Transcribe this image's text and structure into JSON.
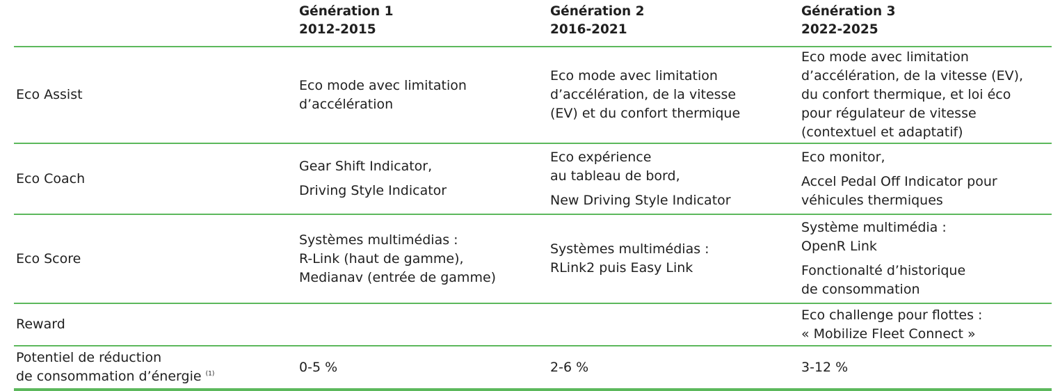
{
  "header": {
    "gen1": {
      "name": "Génération 1",
      "years": "2012-2015"
    },
    "gen2": {
      "name": "Génération 2",
      "years": "2016-2021"
    },
    "gen3": {
      "name": "Génération 3",
      "years": "2022-2025"
    }
  },
  "rows": {
    "eco_assist": {
      "label": "Eco Assist",
      "gen1": [
        "Eco mode avec limitation",
        "d’accélération"
      ],
      "gen2": [
        "Eco mode avec limitation",
        "d’accélération, de la vitesse",
        "(EV) et du confort thermique"
      ],
      "gen3": [
        "Eco mode avec limitation",
        "d’accélération, de la vitesse (EV),",
        "du confort thermique, et loi éco",
        "pour régulateur de vitesse",
        "(contextuel et adaptatif)"
      ]
    },
    "eco_coach": {
      "label": "Eco Coach",
      "gen1": [
        "Gear Shift Indicator,",
        "Driving Style Indicator"
      ],
      "gen2": [
        "Eco expérience",
        "au tableau de bord,",
        "New Driving Style Indicator"
      ],
      "gen3": [
        "Eco monitor,",
        "Accel Pedal Off Indicator pour",
        "véhicules thermiques"
      ]
    },
    "eco_score": {
      "label": "Eco Score",
      "gen1": [
        "Systèmes multimédias :",
        "R-Link (haut de gamme),",
        "Medianav (entrée de gamme)"
      ],
      "gen2": [
        "Systèmes multimédias :",
        "RLink2 puis Easy Link"
      ],
      "gen3": [
        "Système multimédia :",
        "OpenR Link",
        "Fonctionalté d’historique",
        "de consommation"
      ]
    },
    "reward": {
      "label": "Reward",
      "gen3": [
        "Eco challenge pour flottes :",
        "« Mobilize Fleet Connect »"
      ]
    },
    "potentiel": {
      "label_line1": "Potentiel de réduction",
      "label_line2": "de consommation d’énergie",
      "footnote": "(1)",
      "gen1": "0-5 %",
      "gen2": "2-6 %",
      "gen3": "3-12 %"
    }
  }
}
